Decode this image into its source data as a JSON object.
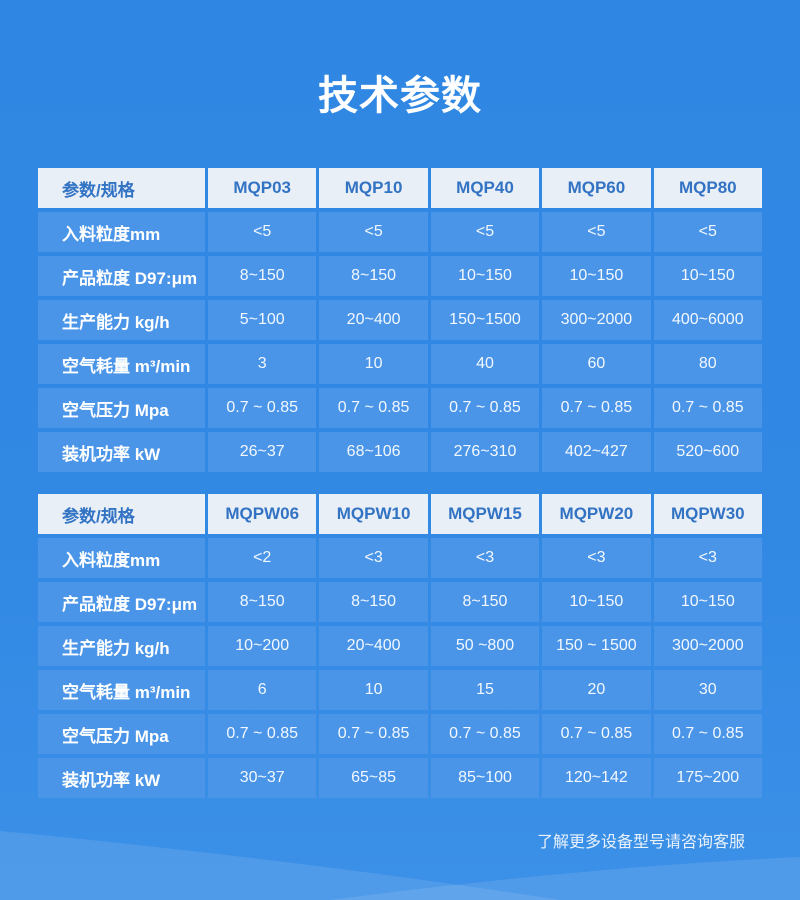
{
  "page": {
    "title": "技术参数",
    "footer_note": "了解更多设备型号请咨询客服"
  },
  "colors": {
    "background_blue": "#2F87E3",
    "cell_blue": "#4B95E8",
    "header_row_bg": "#E9EFF6",
    "header_row_text": "#3273C4",
    "body_text": "#FFFFFF",
    "wave_overlay": "rgba(255,255,255,0.10)"
  },
  "tables": [
    {
      "header": [
        "参数/规格",
        "MQP03",
        "MQP10",
        "MQP40",
        "MQP60",
        "MQP80"
      ],
      "rows": [
        {
          "label": "入料粒度mm",
          "values": [
            "<5",
            "<5",
            "<5",
            "<5",
            "<5"
          ]
        },
        {
          "label": "产品粒度 D97:μm",
          "values": [
            "8~150",
            "8~150",
            "10~150",
            "10~150",
            "10~150"
          ]
        },
        {
          "label": "生产能力 kg/h",
          "values": [
            "5~100",
            "20~400",
            "150~1500",
            "300~2000",
            "400~6000"
          ]
        },
        {
          "label": "空气耗量 m³/min",
          "values": [
            "3",
            "10",
            "40",
            "60",
            "80"
          ]
        },
        {
          "label": "空气压力 Mpa",
          "values": [
            "0.7 ~ 0.85",
            "0.7 ~ 0.85",
            "0.7 ~ 0.85",
            "0.7 ~ 0.85",
            "0.7 ~ 0.85"
          ]
        },
        {
          "label": "装机功率 kW",
          "values": [
            "26~37",
            "68~106",
            "276~310",
            "402~427",
            "520~600"
          ]
        }
      ]
    },
    {
      "header": [
        "参数/规格",
        "MQPW06",
        "MQPW10",
        "MQPW15",
        "MQPW20",
        "MQPW30"
      ],
      "rows": [
        {
          "label": "入料粒度mm",
          "values": [
            "<2",
            "<3",
            "<3",
            "<3",
            "<3"
          ]
        },
        {
          "label": "产品粒度 D97:μm",
          "values": [
            "8~150",
            "8~150",
            "8~150",
            "10~150",
            "10~150"
          ]
        },
        {
          "label": "生产能力 kg/h",
          "values": [
            "10~200",
            "20~400",
            "50 ~800",
            "150 ~ 1500",
            "300~2000"
          ]
        },
        {
          "label": "空气耗量 m³/min",
          "values": [
            "6",
            "10",
            "15",
            "20",
            "30"
          ]
        },
        {
          "label": "空气压力 Mpa",
          "values": [
            "0.7 ~ 0.85",
            "0.7 ~ 0.85",
            "0.7 ~ 0.85",
            "0.7 ~ 0.85",
            "0.7 ~ 0.85"
          ]
        },
        {
          "label": "装机功率 kW",
          "values": [
            "30~37",
            "65~85",
            "85~100",
            "120~142",
            "175~200"
          ]
        }
      ]
    }
  ]
}
